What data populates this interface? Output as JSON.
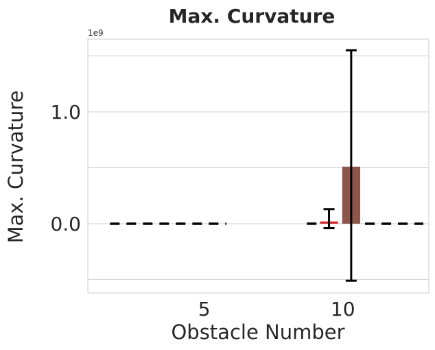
{
  "chart_data": {
    "type": "bar",
    "title": "Max. Curvature",
    "xlabel": "Obstacle Number",
    "ylabel": "Max. Curvature",
    "y_offset_label": "1e9",
    "x_ticks": [
      {
        "value": 5,
        "label": "5"
      },
      {
        "value": 10,
        "label": "10"
      }
    ],
    "y_ticks": [
      {
        "value": 0.0,
        "label": "0.0"
      },
      {
        "value": 1.0,
        "label": "1.0"
      }
    ],
    "xlim": [
      0.8,
      13.1
    ],
    "ylim": [
      -0.62,
      1.65
    ],
    "y_unit_scale": 1000000000,
    "grid": true,
    "series": [
      {
        "color": "#d62728",
        "x": 9.5,
        "value": 0.02,
        "err_low": -0.04,
        "err_high": 0.13,
        "width": 0.65
      },
      {
        "color": "#8c564b",
        "x": 10.3,
        "value": 0.51,
        "err_low": -0.51,
        "err_high": 1.55,
        "width": 0.65
      }
    ],
    "dashed_baseline": {
      "y": 0.0,
      "segments": [
        [
          1.6,
          5.8
        ],
        [
          8.7,
          9.1
        ],
        [
          10.8,
          12.9
        ]
      ]
    }
  }
}
